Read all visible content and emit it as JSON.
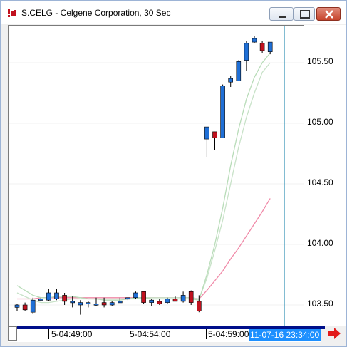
{
  "window": {
    "title": "S.CELG - Celgene Corporation, 30 Sec"
  },
  "price_axis": {
    "labels": [
      "105.50",
      "105.00",
      "104.50",
      "104.00",
      "103.50"
    ]
  },
  "time_axis": {
    "labels": [
      "5-04:49:00",
      "5-04:54:00",
      "5-04:59:00"
    ],
    "cursor_time": "11-07-16 23:34:00"
  },
  "colors": {
    "up": "#1f6fd6",
    "down": "#c1121f",
    "ma_fast": "#b8dcb8",
    "ma_mid": "#c8e2c8",
    "ma_slow": "#f08aa8",
    "cursor_line": "#2e8fb5",
    "scroll_track": "#000f8a"
  },
  "icons": {
    "app": "candles-app-icon",
    "minimize": "minimize-icon",
    "maximize": "maximize-icon",
    "close": "close-icon",
    "navigate": "right-arrow-icon"
  },
  "chart_data": {
    "type": "candlestick",
    "y_range": [
      103.25,
      105.9
    ],
    "y_ticks": [
      105.5,
      105.0,
      104.5,
      104.0,
      103.5
    ],
    "bars": [
      {
        "o": 103.48,
        "h": 103.51,
        "l": 103.45,
        "c": 103.5
      },
      {
        "o": 103.5,
        "h": 103.52,
        "l": 103.45,
        "c": 103.46
      },
      {
        "o": 103.44,
        "h": 103.56,
        "l": 103.43,
        "c": 103.54
      },
      {
        "o": 103.54,
        "h": 103.56,
        "l": 103.53,
        "c": 103.55
      },
      {
        "o": 103.54,
        "h": 103.63,
        "l": 103.53,
        "c": 103.6
      },
      {
        "o": 103.55,
        "h": 103.63,
        "l": 103.54,
        "c": 103.6
      },
      {
        "o": 103.58,
        "h": 103.6,
        "l": 103.5,
        "c": 103.53
      },
      {
        "o": 103.52,
        "h": 103.57,
        "l": 103.48,
        "c": 103.53
      },
      {
        "o": 103.5,
        "h": 103.54,
        "l": 103.42,
        "c": 103.52
      },
      {
        "o": 103.51,
        "h": 103.53,
        "l": 103.48,
        "c": 103.52
      },
      {
        "o": 103.51,
        "h": 103.56,
        "l": 103.49,
        "c": 103.51
      },
      {
        "o": 103.52,
        "h": 103.56,
        "l": 103.48,
        "c": 103.5
      },
      {
        "o": 103.5,
        "h": 103.53,
        "l": 103.49,
        "c": 103.52
      },
      {
        "o": 103.52,
        "h": 103.56,
        "l": 103.52,
        "c": 103.53
      },
      {
        "o": 103.55,
        "h": 103.56,
        "l": 103.54,
        "c": 103.56
      },
      {
        "o": 103.56,
        "h": 103.61,
        "l": 103.55,
        "c": 103.6
      },
      {
        "o": 103.61,
        "h": 103.61,
        "l": 103.51,
        "c": 103.52
      },
      {
        "o": 103.52,
        "h": 103.55,
        "l": 103.49,
        "c": 103.54
      },
      {
        "o": 103.53,
        "h": 103.55,
        "l": 103.5,
        "c": 103.51
      },
      {
        "o": 103.52,
        "h": 103.56,
        "l": 103.51,
        "c": 103.55
      },
      {
        "o": 103.55,
        "h": 103.57,
        "l": 103.53,
        "c": 103.53
      },
      {
        "o": 103.53,
        "h": 103.61,
        "l": 103.52,
        "c": 103.58
      },
      {
        "o": 103.61,
        "h": 103.62,
        "l": 103.5,
        "c": 103.52
      },
      {
        "o": 103.53,
        "h": 103.58,
        "l": 103.44,
        "c": 103.45
      },
      {
        "o": 104.87,
        "h": 104.97,
        "l": 104.72,
        "c": 104.97
      },
      {
        "o": 104.93,
        "h": 104.93,
        "l": 104.78,
        "c": 104.88
      },
      {
        "o": 104.88,
        "h": 105.32,
        "l": 104.88,
        "c": 105.31
      },
      {
        "o": 105.34,
        "h": 105.39,
        "l": 105.3,
        "c": 105.37
      },
      {
        "o": 105.35,
        "h": 105.52,
        "l": 105.35,
        "c": 105.51
      },
      {
        "o": 105.52,
        "h": 105.68,
        "l": 105.43,
        "c": 105.66
      },
      {
        "o": 105.67,
        "h": 105.72,
        "l": 105.66,
        "c": 105.7
      },
      {
        "o": 105.66,
        "h": 105.68,
        "l": 105.58,
        "c": 105.6
      },
      {
        "o": 105.59,
        "h": 105.67,
        "l": 105.57,
        "c": 105.67
      }
    ],
    "ma_fast": [
      103.66,
      103.62,
      103.58,
      103.56,
      103.56,
      103.57,
      103.57,
      103.57,
      103.56,
      103.55,
      103.55,
      103.54,
      103.54,
      103.54,
      103.55,
      103.56,
      103.56,
      103.55,
      103.55,
      103.55,
      103.55,
      103.55,
      103.55,
      103.54,
      103.75,
      104.0,
      104.3,
      104.65,
      104.95,
      105.2,
      105.38,
      105.5,
      105.58
    ],
    "ma_mid": [
      103.6,
      103.57,
      103.54,
      103.52,
      103.52,
      103.53,
      103.54,
      103.55,
      103.55,
      103.55,
      103.55,
      103.55,
      103.55,
      103.55,
      103.55,
      103.55,
      103.56,
      103.56,
      103.56,
      103.56,
      103.56,
      103.56,
      103.56,
      103.55,
      103.72,
      103.95,
      104.2,
      104.5,
      104.8,
      105.05,
      105.25,
      105.42,
      105.5
    ],
    "ma_slow": [
      103.55,
      103.55,
      103.55,
      103.56,
      103.56,
      103.56,
      103.56,
      103.56,
      103.56,
      103.56,
      103.56,
      103.56,
      103.56,
      103.56,
      103.56,
      103.56,
      103.56,
      103.56,
      103.56,
      103.56,
      103.56,
      103.56,
      103.56,
      103.55,
      103.62,
      103.7,
      103.78,
      103.88,
      103.97,
      104.07,
      104.17,
      104.27,
      104.38
    ]
  }
}
